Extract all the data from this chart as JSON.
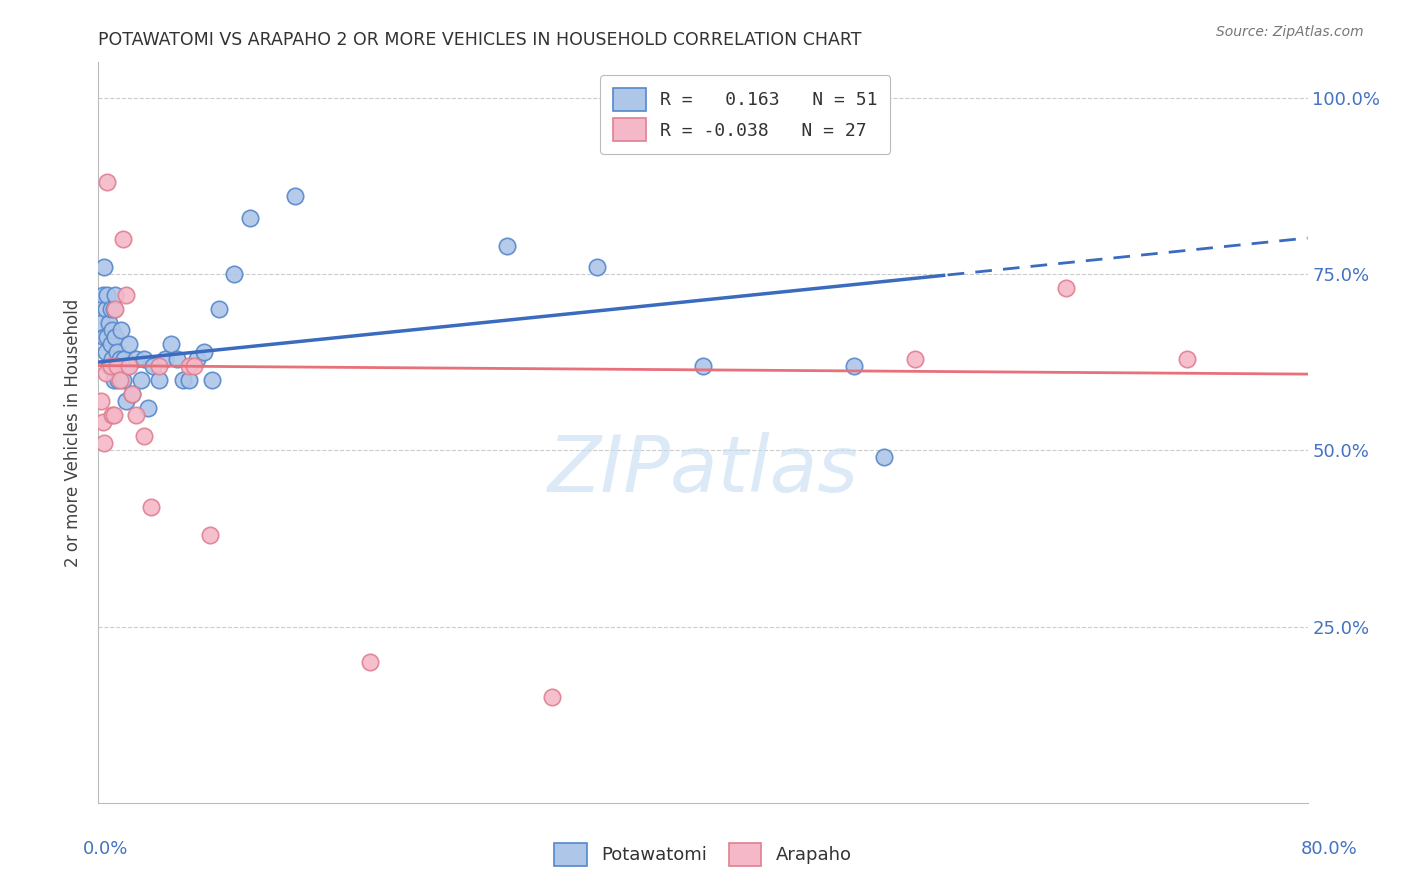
{
  "title": "POTAWATOMI VS ARAPAHO 2 OR MORE VEHICLES IN HOUSEHOLD CORRELATION CHART",
  "source": "Source: ZipAtlas.com",
  "ylabel": "2 or more Vehicles in Household",
  "xlim": [
    0.0,
    0.8
  ],
  "ylim": [
    0.0,
    1.05
  ],
  "blue_color": "#aec6e8",
  "pink_color": "#f4b8c8",
  "blue_line_color": "#3a6bbf",
  "pink_line_color": "#e8707a",
  "blue_dot_edge": "#5588cc",
  "pink_dot_edge": "#e08090",
  "background_color": "#ffffff",
  "grid_color": "#cccccc",
  "potawatomi_x": [
    0.002,
    0.003,
    0.004,
    0.004,
    0.005,
    0.005,
    0.006,
    0.006,
    0.007,
    0.007,
    0.008,
    0.008,
    0.009,
    0.009,
    0.01,
    0.01,
    0.011,
    0.011,
    0.012,
    0.013,
    0.014,
    0.015,
    0.016,
    0.017,
    0.018,
    0.019,
    0.02,
    0.022,
    0.025,
    0.028,
    0.03,
    0.033,
    0.036,
    0.04,
    0.044,
    0.048,
    0.052,
    0.056,
    0.06,
    0.065,
    0.07,
    0.075,
    0.08,
    0.09,
    0.1,
    0.13,
    0.27,
    0.4,
    0.5,
    0.52,
    0.33
  ],
  "potawatomi_y": [
    0.68,
    0.72,
    0.66,
    0.76,
    0.7,
    0.64,
    0.66,
    0.72,
    0.68,
    0.62,
    0.65,
    0.7,
    0.67,
    0.63,
    0.6,
    0.7,
    0.66,
    0.72,
    0.64,
    0.6,
    0.63,
    0.67,
    0.6,
    0.63,
    0.57,
    0.62,
    0.65,
    0.58,
    0.63,
    0.6,
    0.63,
    0.56,
    0.62,
    0.6,
    0.63,
    0.65,
    0.63,
    0.6,
    0.6,
    0.63,
    0.64,
    0.6,
    0.7,
    0.75,
    0.83,
    0.86,
    0.79,
    0.62,
    0.62,
    0.49,
    0.76
  ],
  "arapaho_x": [
    0.002,
    0.003,
    0.004,
    0.005,
    0.006,
    0.008,
    0.009,
    0.01,
    0.011,
    0.012,
    0.014,
    0.016,
    0.018,
    0.02,
    0.022,
    0.025,
    0.03,
    0.035,
    0.04,
    0.06,
    0.063,
    0.074,
    0.18,
    0.3,
    0.54,
    0.64,
    0.72
  ],
  "arapaho_y": [
    0.57,
    0.54,
    0.51,
    0.61,
    0.88,
    0.62,
    0.55,
    0.55,
    0.7,
    0.62,
    0.6,
    0.8,
    0.72,
    0.62,
    0.58,
    0.55,
    0.52,
    0.42,
    0.62,
    0.62,
    0.62,
    0.38,
    0.2,
    0.15,
    0.63,
    0.73,
    0.63
  ]
}
